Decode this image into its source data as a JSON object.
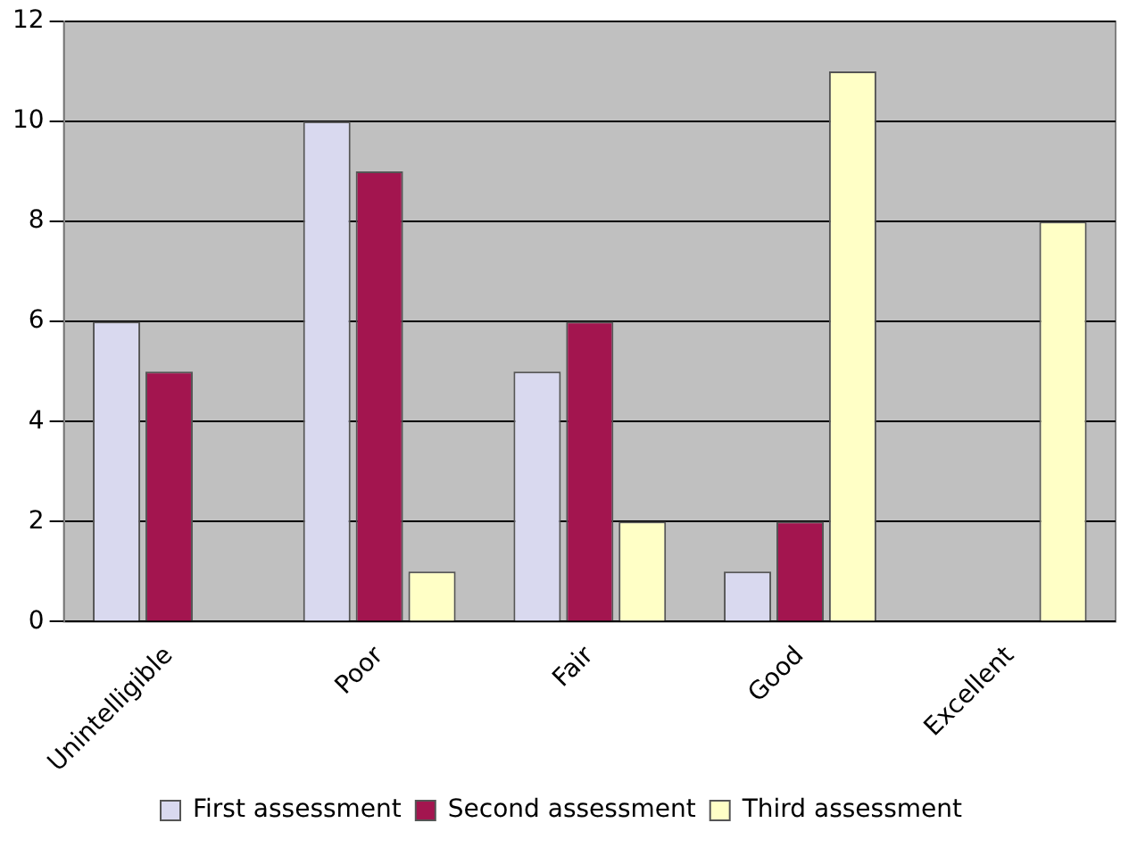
{
  "chart_data": {
    "type": "bar",
    "categories": [
      "Unintelligible",
      "Poor",
      "Fair",
      "Good",
      "Excellent"
    ],
    "series": [
      {
        "name": "First assessment",
        "color": "#d9d9ef",
        "values": [
          6,
          10,
          5,
          1,
          0
        ]
      },
      {
        "name": "Second assessment",
        "color": "#a3154f",
        "values": [
          5,
          9,
          6,
          2,
          0
        ]
      },
      {
        "name": "Third assessment",
        "color": "#ffffc6",
        "values": [
          0,
          1,
          2,
          11,
          8
        ]
      }
    ],
    "ylim": [
      0,
      12
    ],
    "yticks": [
      0,
      2,
      4,
      6,
      8,
      10,
      12
    ],
    "grid": "y",
    "legend": "bottom"
  }
}
